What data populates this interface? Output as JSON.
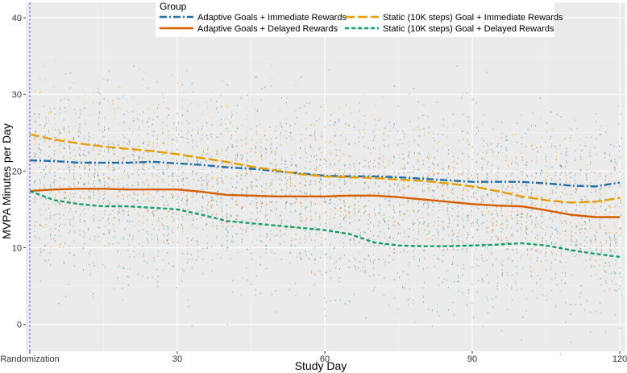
{
  "chart_data": {
    "type": "line",
    "title": "",
    "xlabel": "Study Day",
    "ylabel": "MVPA Minutes per Day",
    "xlim": [
      0,
      120
    ],
    "ylim": [
      -3.5,
      42
    ],
    "x_ticks": [
      {
        "value": 0,
        "label": "Randomization"
      },
      {
        "value": 30,
        "label": "30"
      },
      {
        "value": 60,
        "label": "60"
      },
      {
        "value": 90,
        "label": "90"
      },
      {
        "value": 120,
        "label": "120"
      }
    ],
    "y_ticks": [
      0,
      10,
      20,
      30,
      40
    ],
    "grid": true,
    "background": "#EBEBEB",
    "reference_line": {
      "x": 0,
      "color": "#5B5BFF",
      "style": "dashed"
    },
    "legend": {
      "title": "Group",
      "placement": "top-center"
    },
    "series": [
      {
        "name": "Adaptive Goals + Immediate Rewards",
        "color": "#1F6FAE",
        "dash": "dot-dash",
        "x": [
          0,
          5,
          10,
          15,
          20,
          25,
          30,
          35,
          40,
          45,
          50,
          55,
          60,
          65,
          70,
          75,
          80,
          85,
          90,
          95,
          100,
          105,
          110,
          115,
          120
        ],
        "y": [
          21.4,
          21.3,
          21.1,
          21.1,
          21.1,
          21.2,
          21.0,
          20.8,
          20.5,
          20.3,
          20.0,
          19.7,
          19.4,
          19.3,
          19.3,
          19.2,
          19.0,
          18.8,
          18.6,
          18.6,
          18.6,
          18.4,
          18.1,
          18.0,
          18.5
        ]
      },
      {
        "name": "Adaptive Goals + Delayed Rewards",
        "color": "#D55E00",
        "dash": "solid",
        "x": [
          0,
          5,
          10,
          15,
          20,
          25,
          30,
          35,
          40,
          45,
          50,
          55,
          60,
          65,
          70,
          75,
          80,
          85,
          90,
          95,
          100,
          105,
          110,
          115,
          120
        ],
        "y": [
          17.4,
          17.6,
          17.7,
          17.7,
          17.6,
          17.6,
          17.6,
          17.3,
          16.9,
          16.8,
          16.7,
          16.7,
          16.7,
          16.8,
          16.8,
          16.6,
          16.3,
          16.0,
          15.7,
          15.5,
          15.4,
          14.9,
          14.3,
          14.0,
          14.0
        ]
      },
      {
        "name": "Static (10K steps) Goal + Immediate Rewards",
        "color": "#E69F00",
        "dash": "long-dash",
        "x": [
          0,
          5,
          10,
          15,
          20,
          25,
          30,
          35,
          40,
          45,
          50,
          55,
          60,
          65,
          70,
          75,
          80,
          85,
          90,
          95,
          100,
          105,
          110,
          115,
          120
        ],
        "y": [
          24.8,
          24.1,
          23.6,
          23.2,
          22.9,
          22.6,
          22.2,
          21.7,
          21.2,
          20.6,
          20.1,
          19.6,
          19.3,
          19.2,
          19.1,
          18.9,
          18.7,
          18.4,
          18.0,
          17.4,
          16.7,
          16.2,
          15.9,
          16.0,
          16.5
        ]
      },
      {
        "name": "Static (10K steps) Goal + Delayed Rewards",
        "color": "#1A9E6B",
        "dash": "short-dash",
        "x": [
          0,
          5,
          10,
          15,
          20,
          25,
          30,
          35,
          40,
          45,
          50,
          55,
          60,
          65,
          70,
          75,
          80,
          85,
          90,
          95,
          100,
          105,
          110,
          115,
          120
        ],
        "y": [
          17.4,
          16.2,
          15.7,
          15.4,
          15.4,
          15.2,
          15.0,
          14.3,
          13.5,
          13.2,
          12.9,
          12.6,
          12.3,
          11.8,
          10.7,
          10.3,
          10.2,
          10.2,
          10.3,
          10.4,
          10.6,
          10.3,
          9.7,
          9.2,
          8.8
        ]
      }
    ],
    "scatter_points": "jittered individual daily observations for each group, spread roughly from -5 to 41 minutes across all study days"
  }
}
